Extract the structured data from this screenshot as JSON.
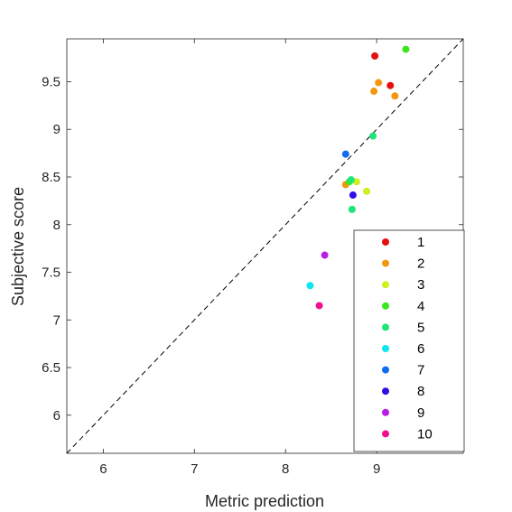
{
  "chart_data": {
    "type": "scatter",
    "title": "",
    "xlabel": "Metric prediction",
    "ylabel": "Subjective score",
    "xlim": [
      5.6,
      9.95
    ],
    "ylim": [
      5.6,
      9.95
    ],
    "xticks": [
      "6",
      "7",
      "8",
      "9"
    ],
    "yticks": [
      "6",
      "6.5",
      "7",
      "7.5",
      "8",
      "8.5",
      "9",
      "9.5"
    ],
    "grid": false,
    "reference_line": {
      "style": "dashed",
      "from": [
        5.6,
        5.6
      ],
      "to": [
        9.95,
        9.95
      ]
    },
    "legend": {
      "position": "bottom-right"
    },
    "series": [
      {
        "name": "1",
        "color": "#e60f0f",
        "points": [
          [
            8.98,
            9.77
          ],
          [
            9.15,
            9.46
          ]
        ]
      },
      {
        "name": "2",
        "color": "#f5960f",
        "points": [
          [
            9.02,
            9.49
          ],
          [
            8.97,
            9.4
          ],
          [
            9.2,
            9.35
          ],
          [
            8.66,
            8.42
          ]
        ]
      },
      {
        "name": "3",
        "color": "#cdf01e",
        "points": [
          [
            8.78,
            8.45
          ],
          [
            8.89,
            8.35
          ]
        ]
      },
      {
        "name": "4",
        "color": "#3ce61e",
        "points": [
          [
            9.32,
            9.84
          ],
          [
            8.7,
            8.45
          ]
        ]
      },
      {
        "name": "5",
        "color": "#1ee678",
        "points": [
          [
            8.96,
            8.93
          ],
          [
            8.72,
            8.47
          ],
          [
            8.73,
            8.16
          ]
        ]
      },
      {
        "name": "6",
        "color": "#0fe6f0",
        "points": [
          [
            8.27,
            7.36
          ]
        ]
      },
      {
        "name": "7",
        "color": "#0f6ef0",
        "points": [
          [
            8.66,
            8.74
          ]
        ]
      },
      {
        "name": "8",
        "color": "#2d0fe6",
        "points": [
          [
            8.74,
            8.31
          ]
        ]
      },
      {
        "name": "9",
        "color": "#b91ee6",
        "points": [
          [
            8.43,
            7.68
          ]
        ]
      },
      {
        "name": "10",
        "color": "#f00f8c",
        "points": [
          [
            8.37,
            7.15
          ]
        ]
      }
    ]
  }
}
